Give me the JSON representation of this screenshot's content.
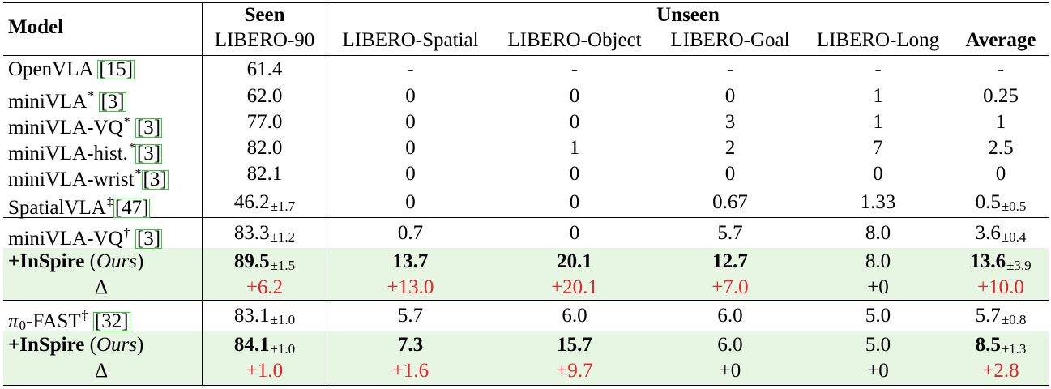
{
  "header": {
    "model": "Model",
    "seen": "Seen",
    "unseen": "Unseen",
    "columns": [
      "LIBERO-90",
      "LIBERO-Spatial",
      "LIBERO-Object",
      "LIBERO-Goal",
      "LIBERO-Long",
      "Average"
    ]
  },
  "rows": [
    {
      "model": {
        "parts": [
          {
            "t": "OpenVLA "
          },
          {
            "cite": "[15]"
          }
        ]
      },
      "cells": [
        {
          "v": "61.4"
        },
        {
          "v": "-"
        },
        {
          "v": "-"
        },
        {
          "v": "-"
        },
        {
          "v": "-"
        },
        {
          "v": "-"
        }
      ]
    },
    {
      "model": {
        "parts": [
          {
            "t": "miniVLA"
          },
          {
            "sup": "*"
          },
          {
            "t": " "
          },
          {
            "cite": "[3]"
          }
        ]
      },
      "cells": [
        {
          "v": "62.0"
        },
        {
          "v": "0"
        },
        {
          "v": "0"
        },
        {
          "v": "0"
        },
        {
          "v": "1"
        },
        {
          "v": "0.25"
        }
      ]
    },
    {
      "model": {
        "parts": [
          {
            "t": "miniVLA-VQ"
          },
          {
            "sup": "*"
          },
          {
            "t": " "
          },
          {
            "cite": "[3]"
          }
        ]
      },
      "cells": [
        {
          "v": "77.0"
        },
        {
          "v": "0"
        },
        {
          "v": "0"
        },
        {
          "v": "3"
        },
        {
          "v": "1"
        },
        {
          "v": "1"
        }
      ]
    },
    {
      "model": {
        "parts": [
          {
            "t": "miniVLA-hist."
          },
          {
            "sup": "*"
          },
          {
            "cite": "[3]"
          }
        ]
      },
      "cells": [
        {
          "v": "82.0"
        },
        {
          "v": "0"
        },
        {
          "v": "1"
        },
        {
          "v": "2"
        },
        {
          "v": "7"
        },
        {
          "v": "2.5"
        }
      ]
    },
    {
      "model": {
        "parts": [
          {
            "t": "miniVLA-wrist"
          },
          {
            "sup": "*"
          },
          {
            "cite": "[3]"
          }
        ]
      },
      "cells": [
        {
          "v": "82.1"
        },
        {
          "v": "0"
        },
        {
          "v": "0"
        },
        {
          "v": "0"
        },
        {
          "v": "0"
        },
        {
          "v": "0"
        }
      ]
    },
    {
      "model": {
        "parts": [
          {
            "t": "SpatialVLA"
          },
          {
            "sup": "‡"
          },
          {
            "cite": "[47]"
          }
        ]
      },
      "cells": [
        {
          "v": "46.2",
          "sub": "±1.7"
        },
        {
          "v": "0"
        },
        {
          "v": "0"
        },
        {
          "v": "0.67"
        },
        {
          "v": "1.33"
        },
        {
          "v": "0.5",
          "sub": "±0.5"
        }
      ]
    },
    {
      "model": {
        "parts": [
          {
            "t": "miniVLA-VQ"
          },
          {
            "sup": "†"
          },
          {
            "t": " "
          },
          {
            "cite": "[3]"
          }
        ]
      },
      "cells": [
        {
          "v": "83.3",
          "sub": "±1.2"
        },
        {
          "v": "0.7"
        },
        {
          "v": "0"
        },
        {
          "v": "5.7"
        },
        {
          "v": "8.0"
        },
        {
          "v": "3.6",
          "sub": "±0.4"
        }
      ]
    },
    {
      "highlight": true,
      "model": {
        "parts": [
          {
            "t": "+InSpire",
            "b": true
          },
          {
            "t": " ("
          },
          {
            "t": "Ours",
            "i": true
          },
          {
            "t": ")"
          }
        ]
      },
      "cells": [
        {
          "v": "89.5",
          "b": true,
          "sub": "±1.5"
        },
        {
          "v": "13.7",
          "b": true
        },
        {
          "v": "20.1",
          "b": true
        },
        {
          "v": "12.7",
          "b": true
        },
        {
          "v": "8.0"
        },
        {
          "v": "13.6",
          "b": true,
          "sub": "±3.9"
        }
      ]
    },
    {
      "highlight": true,
      "center_model": true,
      "model": {
        "parts": [
          {
            "t": "Δ"
          }
        ]
      },
      "cells": [
        {
          "v": "+6.2",
          "red": true
        },
        {
          "v": "+13.0",
          "red": true
        },
        {
          "v": "+20.1",
          "red": true
        },
        {
          "v": "+7.0",
          "red": true
        },
        {
          "v": "+0"
        },
        {
          "v": "+10.0",
          "red": true
        }
      ]
    },
    {
      "model": {
        "parts": [
          {
            "t": "π",
            "i": true
          },
          {
            "sub": "0"
          },
          {
            "t": "-FAST"
          },
          {
            "sup": "‡"
          },
          {
            "t": " "
          },
          {
            "cite": "[32]"
          }
        ]
      },
      "cells": [
        {
          "v": "83.1",
          "sub": "±1.0"
        },
        {
          "v": "5.7"
        },
        {
          "v": "6.0"
        },
        {
          "v": "6.0"
        },
        {
          "v": "5.0"
        },
        {
          "v": "5.7",
          "sub": "±0.8"
        }
      ]
    },
    {
      "highlight": true,
      "model": {
        "parts": [
          {
            "t": "+InSpire",
            "b": true
          },
          {
            "t": " ("
          },
          {
            "t": "Ours",
            "i": true
          },
          {
            "t": ")"
          }
        ]
      },
      "cells": [
        {
          "v": "84.1",
          "b": true,
          "sub": "±1.0"
        },
        {
          "v": "7.3",
          "b": true
        },
        {
          "v": "15.7",
          "b": true
        },
        {
          "v": "6.0"
        },
        {
          "v": "5.0"
        },
        {
          "v": "8.5",
          "b": true,
          "sub": "±1.3"
        }
      ]
    },
    {
      "highlight": true,
      "center_model": true,
      "model": {
        "parts": [
          {
            "t": "Δ"
          }
        ]
      },
      "cells": [
        {
          "v": "+1.0",
          "red": true
        },
        {
          "v": "+1.6",
          "red": true
        },
        {
          "v": "+9.7",
          "red": true
        },
        {
          "v": "+0"
        },
        {
          "v": "+0"
        },
        {
          "v": "+2.8",
          "red": true
        }
      ]
    }
  ]
}
